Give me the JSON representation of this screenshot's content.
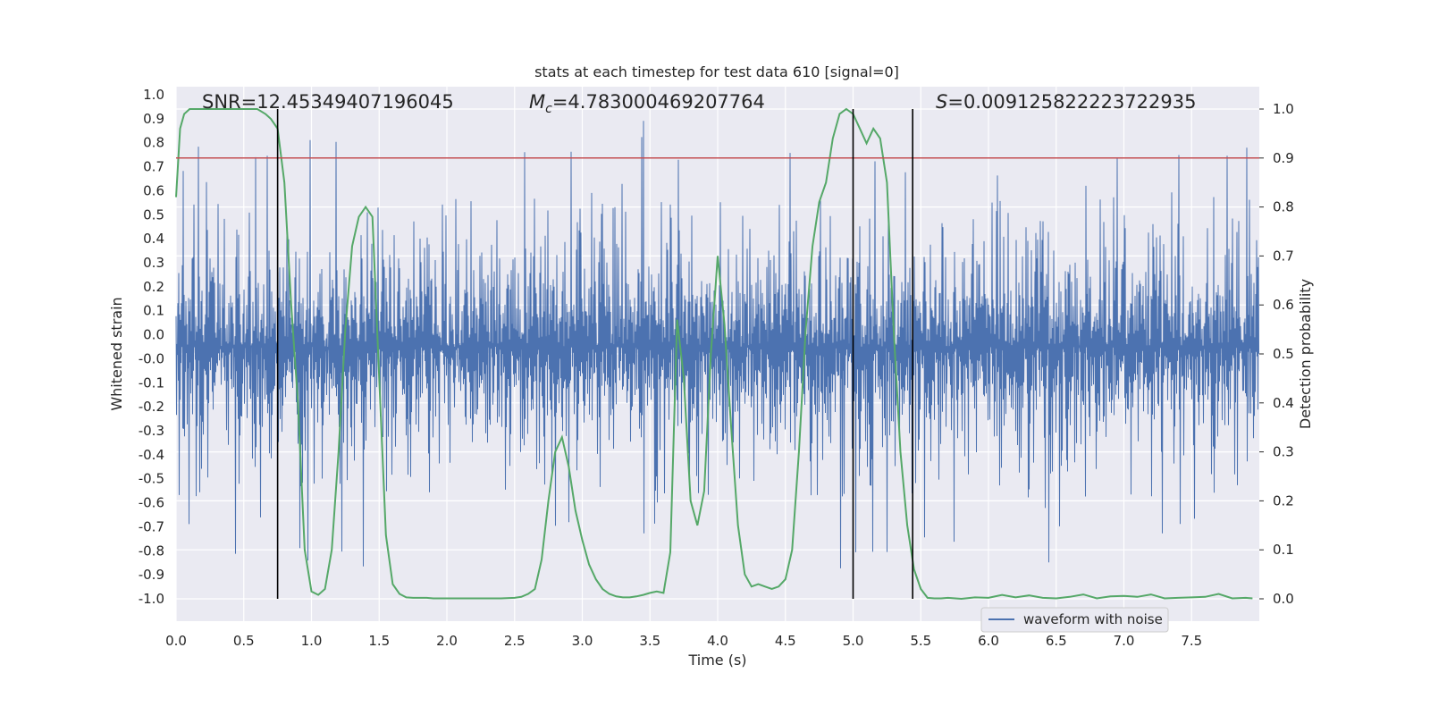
{
  "chart_data": {
    "type": "line",
    "title": "stats at each timestep for test data 610 [signal=0]",
    "xlabel": "Time (s)",
    "ylabel": "Whitened strain",
    "y2label": "Detection probability",
    "xlim": [
      0.0,
      8.0
    ],
    "ylim": [
      -1.1,
      1.05
    ],
    "y2lim": [
      -0.05,
      1.03
    ],
    "xticks": [
      "0.0",
      "0.5",
      "1.0",
      "1.5",
      "2.0",
      "2.5",
      "3.0",
      "3.5",
      "4.0",
      "4.5",
      "5.0",
      "5.5",
      "6.0",
      "6.5",
      "7.0",
      "7.5"
    ],
    "yticks": [
      "1.0",
      "0.9",
      "0.8",
      "0.7",
      "0.6",
      "0.5",
      "0.4",
      "0.3",
      "0.2",
      "0.1",
      "0.0",
      "-0.0",
      "-0.1",
      "-0.2",
      "-0.3",
      "-0.4",
      "-0.5",
      "-0.6",
      "-0.7",
      "-0.8",
      "-0.9",
      "-1.0"
    ],
    "yticks_right": [
      "1.0",
      "0.9",
      "0.8",
      "0.7",
      "0.6",
      "0.5",
      "0.4",
      "0.3",
      "0.2",
      "0.1",
      "0.0"
    ],
    "annotations": {
      "snr": "SNR=12.45349407196045",
      "mc_symbol": "M",
      "mc_sub": "c",
      "mc_value": "=4.783000469207764",
      "s_symbol": "S",
      "s_value": "=0.009125822223722935"
    },
    "threshold": 0.9,
    "vlines": [
      0.75,
      5.0,
      5.44
    ],
    "legend": {
      "label": "waveform with noise",
      "placement": "lower-right"
    },
    "grid": true,
    "series": [
      {
        "name": "waveform with noise",
        "color": "#4c72b0",
        "description_values": "dense whitened noise, typical amplitude within about ±0.5, spikes up to about ±0.9"
      },
      {
        "color": "#55a868",
        "x": [
          0.0,
          0.03,
          0.06,
          0.1,
          0.15,
          0.2,
          0.3,
          0.4,
          0.5,
          0.6,
          0.66,
          0.7,
          0.75,
          0.8,
          0.85,
          0.9,
          0.95,
          1.0,
          1.05,
          1.1,
          1.15,
          1.2,
          1.25,
          1.3,
          1.35,
          1.4,
          1.45,
          1.5,
          1.55,
          1.6,
          1.65,
          1.7,
          1.75,
          1.8,
          1.85,
          1.9,
          2.0,
          2.1,
          2.2,
          2.3,
          2.4,
          2.5,
          2.55,
          2.6,
          2.65,
          2.7,
          2.75,
          2.8,
          2.85,
          2.9,
          2.95,
          3.0,
          3.05,
          3.1,
          3.15,
          3.2,
          3.25,
          3.3,
          3.35,
          3.4,
          3.45,
          3.5,
          3.55,
          3.6,
          3.65,
          3.7,
          3.75,
          3.8,
          3.85,
          3.9,
          3.95,
          4.0,
          4.05,
          4.1,
          4.15,
          4.2,
          4.25,
          4.3,
          4.35,
          4.4,
          4.45,
          4.5,
          4.55,
          4.6,
          4.65,
          4.7,
          4.75,
          4.8,
          4.85,
          4.9,
          4.95,
          5.0,
          5.05,
          5.1,
          5.15,
          5.2,
          5.25,
          5.3,
          5.35,
          5.4,
          5.45,
          5.5,
          5.55,
          5.6,
          5.65,
          5.7,
          5.8,
          5.9,
          6.0,
          6.1,
          6.2,
          6.3,
          6.4,
          6.5,
          6.6,
          6.7,
          6.8,
          6.9,
          7.0,
          7.1,
          7.2,
          7.3,
          7.4,
          7.5,
          7.6,
          7.7,
          7.8,
          7.9,
          7.95
        ],
        "y": [
          0.82,
          0.96,
          0.99,
          1.0,
          1.0,
          1.0,
          1.0,
          1.0,
          1.0,
          1.0,
          0.99,
          0.98,
          0.96,
          0.85,
          0.6,
          0.4,
          0.1,
          0.015,
          0.008,
          0.02,
          0.1,
          0.3,
          0.55,
          0.72,
          0.78,
          0.8,
          0.78,
          0.45,
          0.13,
          0.03,
          0.01,
          0.003,
          0.002,
          0.002,
          0.002,
          0.001,
          0.001,
          0.001,
          0.001,
          0.001,
          0.001,
          0.002,
          0.004,
          0.01,
          0.02,
          0.08,
          0.2,
          0.3,
          0.33,
          0.27,
          0.18,
          0.12,
          0.07,
          0.04,
          0.02,
          0.01,
          0.005,
          0.003,
          0.003,
          0.005,
          0.008,
          0.012,
          0.015,
          0.012,
          0.095,
          0.57,
          0.45,
          0.2,
          0.15,
          0.22,
          0.5,
          0.7,
          0.56,
          0.35,
          0.15,
          0.05,
          0.025,
          0.03,
          0.025,
          0.02,
          0.025,
          0.04,
          0.1,
          0.3,
          0.55,
          0.72,
          0.81,
          0.85,
          0.94,
          0.99,
          1.0,
          0.99,
          0.96,
          0.93,
          0.96,
          0.94,
          0.85,
          0.55,
          0.3,
          0.15,
          0.06,
          0.02,
          0.002,
          0.001,
          0.001,
          0.002,
          0.0,
          0.003,
          0.002,
          0.008,
          0.003,
          0.007,
          0.002,
          0.001,
          0.004,
          0.009,
          0.001,
          0.005,
          0.006,
          0.004,
          0.009,
          0.001,
          0.002,
          0.003,
          0.004,
          0.01,
          0.001,
          0.002,
          0.001
        ]
      }
    ]
  }
}
